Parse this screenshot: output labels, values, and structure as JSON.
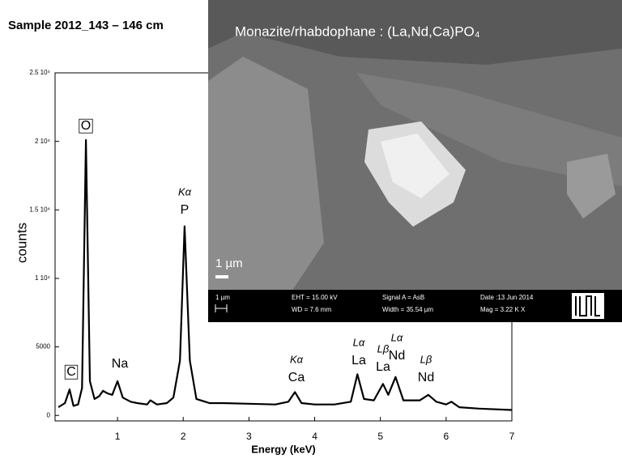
{
  "chart_data": {
    "type": "line",
    "title": "Sample 2012_143 – 146 cm",
    "x_label": "Energy (keV)",
    "y_label": "counts",
    "color": "#000000",
    "x": [
      0.1,
      0.2,
      0.27,
      0.33,
      0.4,
      0.46,
      0.52,
      0.58,
      0.65,
      0.72,
      0.78,
      0.85,
      0.92,
      1.0,
      1.08,
      1.2,
      1.3,
      1.45,
      1.5,
      1.6,
      1.75,
      1.85,
      1.95,
      2.02,
      2.1,
      2.2,
      2.4,
      2.6,
      3.0,
      3.4,
      3.6,
      3.7,
      3.8,
      4.0,
      4.3,
      4.55,
      4.65,
      4.75,
      4.9,
      5.04,
      5.12,
      5.23,
      5.35,
      5.6,
      5.73,
      5.85,
      6.0,
      6.08,
      6.2,
      6.5,
      7.0
    ],
    "values": [
      600,
      900,
      1900,
      700,
      800,
      2000,
      20100,
      2500,
      1200,
      1400,
      1800,
      1600,
      1500,
      2500,
      1300,
      1000,
      900,
      800,
      1100,
      800,
      900,
      1300,
      4000,
      13800,
      4000,
      1200,
      900,
      900,
      850,
      800,
      1000,
      1700,
      900,
      800,
      800,
      1000,
      3000,
      1200,
      1100,
      2300,
      1500,
      2800,
      1100,
      1100,
      1500,
      1000,
      800,
      1000,
      600,
      500,
      400
    ],
    "xlim": [
      0.05,
      7
    ],
    "xticks": [
      1,
      2,
      3,
      4,
      5,
      6,
      7
    ],
    "ylim": [
      -400,
      25000
    ],
    "yticks": [
      0,
      5000,
      {
        "value": 10000,
        "label": "1 10⁴"
      },
      {
        "value": 15000,
        "label": "1.5 10⁴"
      },
      {
        "value": 20000,
        "label": "2 10⁴"
      },
      {
        "value": 25000,
        "label": "2.5 10⁴"
      }
    ],
    "annotations": [
      {
        "element": "C"
      },
      {
        "element": "O"
      },
      {
        "element": "Na"
      },
      {
        "line": "Kα",
        "element": "P"
      },
      {
        "line": "Kα",
        "element": "Ca"
      },
      {
        "line": "Lα",
        "element": "La"
      },
      {
        "line": "Lβ",
        "element": "La"
      },
      {
        "line": "Lα",
        "element": "Nd"
      },
      {
        "line": "Lβ",
        "element": "Nd"
      }
    ]
  },
  "sem_image": {
    "caption": "Monazite/rhabdophane : (La,Nd,Ca)PO₄",
    "scale_label": "1 µm",
    "info": {
      "scale": "1 µm",
      "eht": "EHT = 15.00 kV",
      "wd": "WD = 7.6 mm",
      "signal": "Signal A = AsB",
      "width": "Width = 35.54 µm",
      "date": "Date :13 Jun 2014",
      "mag": "Mag =  3.22 K X"
    }
  }
}
